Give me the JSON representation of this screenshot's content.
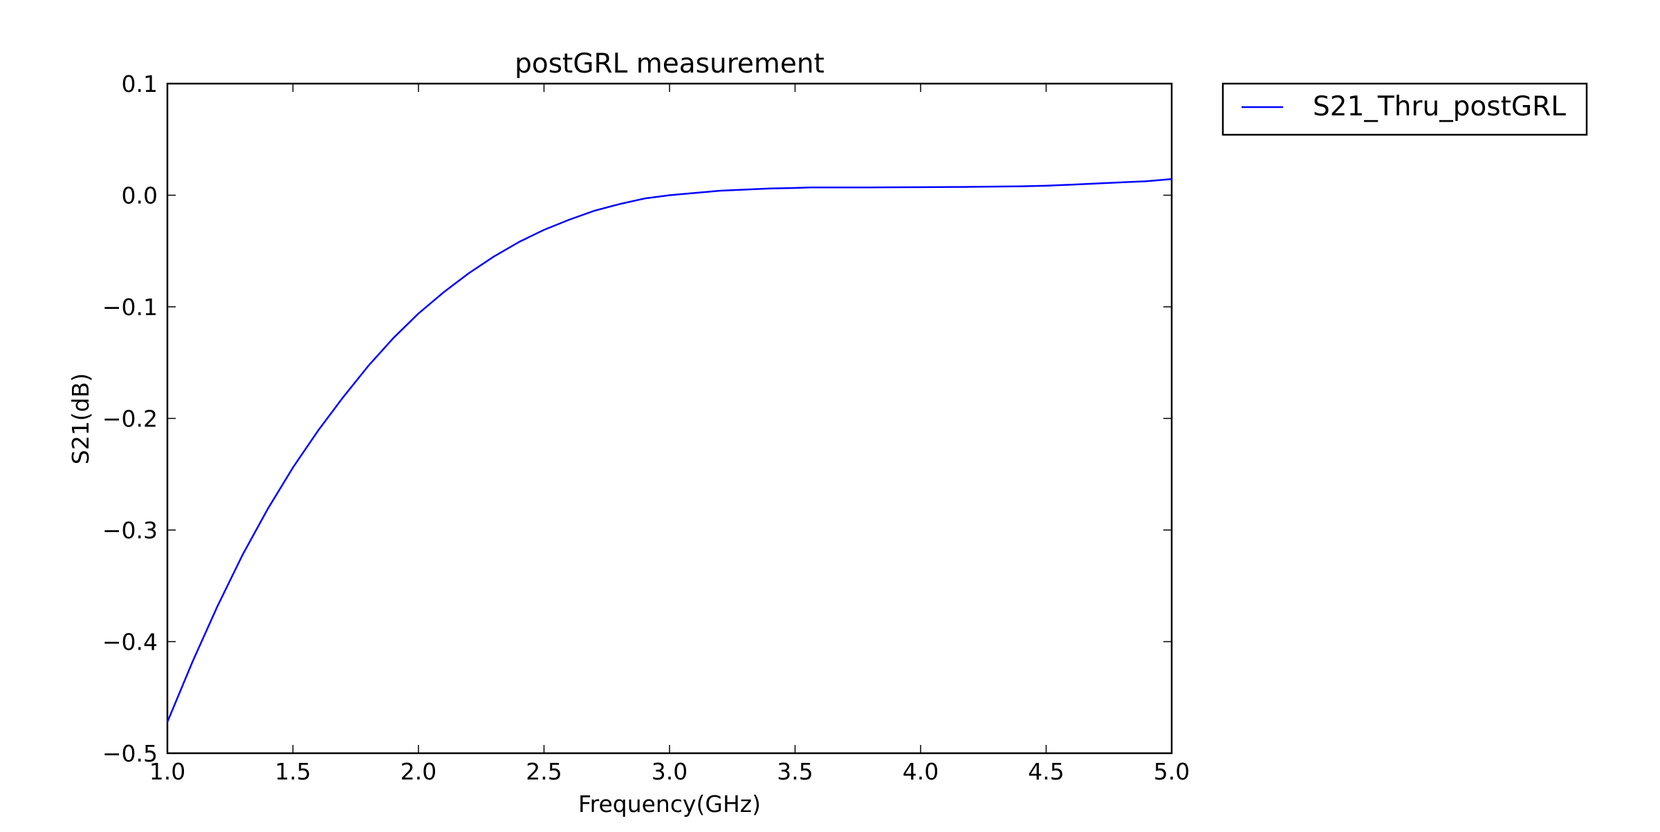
{
  "chart_data": {
    "type": "line",
    "title": "postGRL measurement",
    "xlabel": "Frequency(GHz)",
    "ylabel": "S21(dB)",
    "xlim": [
      1.0,
      5.0
    ],
    "ylim": [
      -0.5,
      0.1
    ],
    "xticks": [
      1.0,
      1.5,
      2.0,
      2.5,
      3.0,
      3.5,
      4.0,
      4.5,
      5.0
    ],
    "xtick_labels": [
      "1.0",
      "1.5",
      "2.0",
      "2.5",
      "3.0",
      "3.5",
      "4.0",
      "4.5",
      "5.0"
    ],
    "yticks": [
      0.1,
      0.0,
      -0.1,
      -0.2,
      -0.3,
      -0.4,
      -0.5
    ],
    "ytick_labels": [
      "0.1",
      "0.0",
      "−0.1",
      "−0.2",
      "−0.3",
      "−0.4",
      "−0.5"
    ],
    "grid": false,
    "legend_position": "outside-right-top",
    "series": [
      {
        "name": "S21_Thru_postGRL",
        "color": "#0000ff",
        "x": [
          1.0,
          1.1,
          1.2,
          1.3,
          1.4,
          1.5,
          1.6,
          1.7,
          1.8,
          1.9,
          2.0,
          2.1,
          2.2,
          2.3,
          2.4,
          2.5,
          2.6,
          2.7,
          2.8,
          2.9,
          3.0,
          3.1,
          3.2,
          3.3,
          3.4,
          3.5,
          3.56,
          3.7,
          3.8,
          4.0,
          4.2,
          4.4,
          4.5,
          4.6,
          4.8,
          4.9,
          5.0
        ],
        "y": [
          -0.472,
          -0.418,
          -0.368,
          -0.322,
          -0.281,
          -0.244,
          -0.211,
          -0.181,
          -0.153,
          -0.128,
          -0.106,
          -0.087,
          -0.07,
          -0.055,
          -0.042,
          -0.031,
          -0.022,
          -0.014,
          -0.008,
          -0.003,
          0.0,
          0.002,
          0.004,
          0.005,
          0.006,
          0.0065,
          0.007,
          0.007,
          0.007,
          0.0072,
          0.0075,
          0.008,
          0.0085,
          0.0095,
          0.0115,
          0.0125,
          0.0145
        ]
      }
    ]
  }
}
